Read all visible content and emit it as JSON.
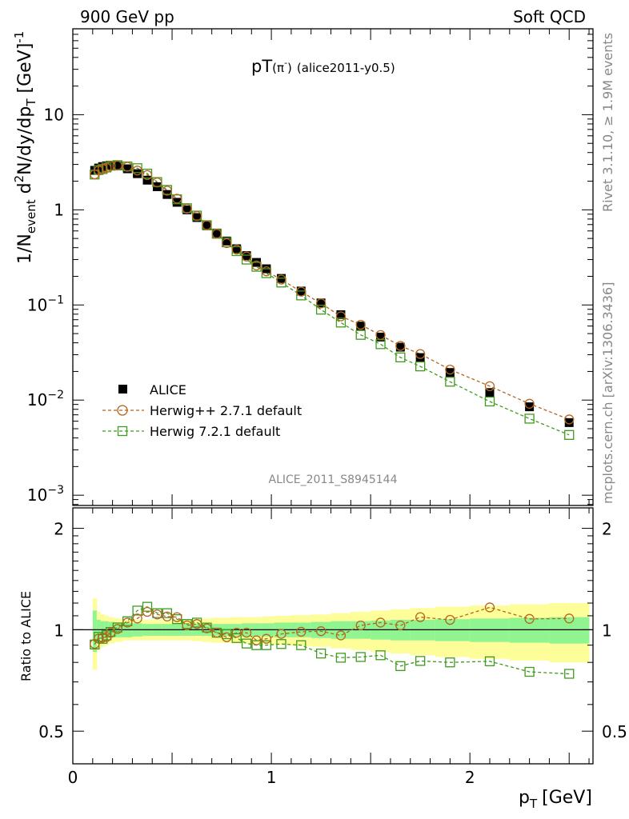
{
  "header": {
    "left": "900 GeV pp",
    "right": "Soft QCD"
  },
  "side_labels": {
    "rivet": "Rivet 3.1.10, ≥ 1.9M events",
    "mcplots": "mcplots.cern.ch [arXiv:1306.3436]"
  },
  "watermark": "ALICE_2011_S8945144",
  "plot_title": {
    "main": "pT",
    "particle": "(π",
    "sup": "-",
    "close": ")",
    "tag": "(alice2011-y0.5)"
  },
  "ylabel_main": {
    "a": "1/N",
    "sub1": "event",
    "b": " d",
    "sup1": "2",
    "c": "N/dy/dp",
    "sub2": "T",
    "d": " [GeV]",
    "sup2": "-1"
  },
  "ylabel_ratio": "Ratio to ALICE",
  "xlabel": {
    "p": "p",
    "sub": "T",
    "unit": "[GeV]"
  },
  "legend": {
    "alice": "ALICE",
    "herwigpp": "Herwig++ 2.7.1 default",
    "herwig7": "Herwig 7.2.1 default"
  },
  "colors": {
    "data": "#000000",
    "herwigpp": "#b5651d",
    "herwig7": "#3f9a1e",
    "band_inner": "#90f590",
    "band_outer": "#fdfd9a"
  },
  "ticks": {
    "main_y": [
      {
        "v": 10,
        "base": "10",
        "exp": ""
      },
      {
        "v": 1,
        "base": "1",
        "exp": ""
      },
      {
        "v": 0.1,
        "base": "10",
        "exp": "−1"
      },
      {
        "v": 0.01,
        "base": "10",
        "exp": "−2"
      },
      {
        "v": 0.001,
        "base": "10",
        "exp": "−3"
      }
    ],
    "ratio_y": [
      {
        "v": 2,
        "label": "2"
      },
      {
        "v": 1,
        "label": "1"
      },
      {
        "v": 0.5,
        "label": "0.5"
      }
    ],
    "x": [
      {
        "v": 0,
        "label": "0"
      },
      {
        "v": 1,
        "label": "1"
      },
      {
        "v": 2,
        "label": "2"
      }
    ]
  },
  "chart_data": {
    "type": "scatter",
    "xlim": [
      0,
      2.62
    ],
    "ylim": [
      0.00078,
      80
    ],
    "ylog": true,
    "ratio_ylim": [
      0.4,
      2.3
    ],
    "ratio_ylog": true,
    "x": [
      0.11,
      0.13,
      0.15,
      0.17,
      0.19,
      0.225,
      0.275,
      0.325,
      0.375,
      0.425,
      0.475,
      0.525,
      0.575,
      0.625,
      0.675,
      0.725,
      0.775,
      0.825,
      0.875,
      0.925,
      0.975,
      1.05,
      1.15,
      1.25,
      1.35,
      1.45,
      1.55,
      1.65,
      1.75,
      1.9,
      2.1,
      2.3,
      2.5
    ],
    "series": [
      {
        "name": "ALICE",
        "marker": "filled-square",
        "values": [
          2.6,
          2.75,
          2.85,
          2.9,
          2.95,
          2.9,
          2.7,
          2.4,
          2.05,
          1.75,
          1.45,
          1.2,
          1.0,
          0.83,
          0.68,
          0.57,
          0.47,
          0.39,
          0.33,
          0.28,
          0.24,
          0.19,
          0.14,
          0.105,
          0.079,
          0.06,
          0.046,
          0.036,
          0.028,
          0.0195,
          0.012,
          0.0085,
          0.0058
        ]
      },
      {
        "name": "Herwig++ 2.7.1 default",
        "marker": "open-circle",
        "values": [
          2.36,
          2.59,
          2.7,
          2.76,
          2.89,
          2.92,
          2.84,
          2.59,
          2.32,
          1.94,
          1.59,
          1.31,
          1.03,
          0.86,
          0.69,
          0.56,
          0.447,
          0.382,
          0.323,
          0.26,
          0.226,
          0.185,
          0.138,
          0.104,
          0.076,
          0.062,
          0.0483,
          0.0371,
          0.0305,
          0.0209,
          0.014,
          0.00915,
          0.00626
        ],
        "ratio": [
          0.908,
          0.942,
          0.947,
          0.952,
          0.98,
          1.005,
          1.05,
          1.08,
          1.13,
          1.11,
          1.095,
          1.09,
          1.03,
          1.04,
          1.01,
          0.98,
          0.95,
          0.98,
          0.98,
          0.93,
          0.94,
          0.972,
          0.986,
          0.99,
          0.962,
          1.03,
          1.05,
          1.03,
          1.09,
          1.07,
          1.165,
          1.077,
          1.08
        ]
      },
      {
        "name": "Herwig 7.2.1 default",
        "marker": "open-square",
        "values": [
          2.35,
          2.62,
          2.68,
          2.79,
          2.91,
          2.95,
          2.86,
          2.74,
          2.4,
          1.96,
          1.62,
          1.29,
          1.04,
          0.87,
          0.69,
          0.56,
          0.455,
          0.368,
          0.3,
          0.252,
          0.216,
          0.172,
          0.126,
          0.0893,
          0.0653,
          0.0485,
          0.0387,
          0.0281,
          0.0226,
          0.0156,
          0.00967,
          0.00638,
          0.0043
        ],
        "ratio": [
          0.904,
          0.953,
          0.94,
          0.962,
          0.985,
          1.016,
          1.06,
          1.14,
          1.17,
          1.12,
          1.12,
          1.075,
          1.04,
          1.05,
          1.015,
          0.98,
          0.97,
          0.945,
          0.91,
          0.9,
          0.9,
          0.907,
          0.9,
          0.85,
          0.826,
          0.83,
          0.84,
          0.78,
          0.808,
          0.8,
          0.806,
          0.75,
          0.74
        ]
      }
    ],
    "band_inner_halfwidth": [
      0.14,
      0.07,
      0.06,
      0.06,
      0.055,
      0.05,
      0.05,
      0.045,
      0.04,
      0.04,
      0.04,
      0.04,
      0.04,
      0.04,
      0.04,
      0.04,
      0.04,
      0.04,
      0.045,
      0.045,
      0.045,
      0.05,
      0.05,
      0.055,
      0.06,
      0.06,
      0.065,
      0.07,
      0.07,
      0.075,
      0.08,
      0.085,
      0.09
    ],
    "band_outer_halfwidth": [
      0.24,
      0.13,
      0.11,
      0.1,
      0.09,
      0.08,
      0.07,
      0.07,
      0.07,
      0.07,
      0.07,
      0.07,
      0.07,
      0.075,
      0.08,
      0.085,
      0.085,
      0.09,
      0.09,
      0.09,
      0.095,
      0.1,
      0.105,
      0.11,
      0.12,
      0.13,
      0.14,
      0.15,
      0.16,
      0.17,
      0.18,
      0.19,
      0.2
    ]
  }
}
